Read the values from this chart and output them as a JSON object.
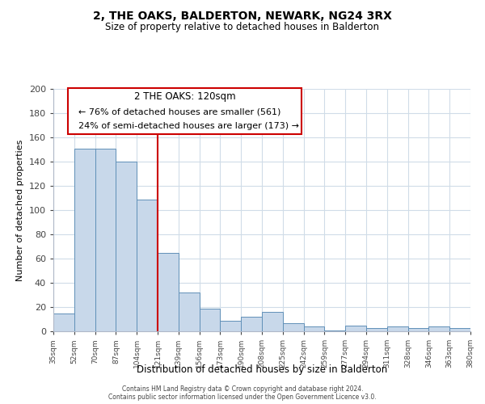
{
  "title": "2, THE OAKS, BALDERTON, NEWARK, NG24 3RX",
  "subtitle": "Size of property relative to detached houses in Balderton",
  "xlabel": "Distribution of detached houses by size in Balderton",
  "ylabel": "Number of detached properties",
  "categories": [
    "35sqm",
    "52sqm",
    "70sqm",
    "87sqm",
    "104sqm",
    "121sqm",
    "139sqm",
    "156sqm",
    "173sqm",
    "190sqm",
    "208sqm",
    "225sqm",
    "242sqm",
    "259sqm",
    "277sqm",
    "294sqm",
    "311sqm",
    "328sqm",
    "346sqm",
    "363sqm",
    "380sqm"
  ],
  "values": [
    15,
    151,
    151,
    140,
    109,
    65,
    32,
    19,
    9,
    12,
    16,
    7,
    4,
    1,
    5,
    3,
    4,
    3,
    4,
    3
  ],
  "bar_color": "#c8d8ea",
  "bar_edge_color": "#6090b8",
  "highlight_index": 5,
  "highlight_line_color": "#cc0000",
  "ylim": [
    0,
    200
  ],
  "yticks": [
    0,
    20,
    40,
    60,
    80,
    100,
    120,
    140,
    160,
    180,
    200
  ],
  "annotation_title": "2 THE OAKS: 120sqm",
  "annotation_line1": "← 76% of detached houses are smaller (561)",
  "annotation_line2": "24% of semi-detached houses are larger (173) →",
  "annotation_box_color": "#ffffff",
  "annotation_box_edge_color": "#cc0000",
  "footer_line1": "Contains HM Land Registry data © Crown copyright and database right 2024.",
  "footer_line2": "Contains public sector information licensed under the Open Government Licence v3.0.",
  "background_color": "#ffffff",
  "grid_color": "#d0dce8",
  "spine_color": "#b0b8c8"
}
